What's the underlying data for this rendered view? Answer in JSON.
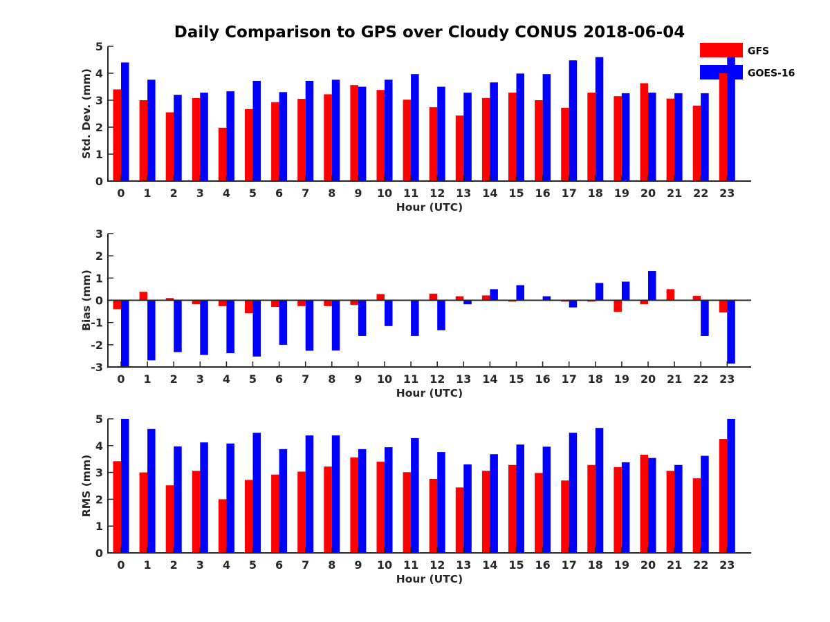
{
  "title": "Daily Comparison to GPS over Cloudy CONUS 2018-06-04",
  "legend": [
    {
      "name": "GFS",
      "color": "#ff0000"
    },
    {
      "name": "GOES-16",
      "color": "#0000ff"
    }
  ],
  "legend_position": "top-right",
  "colors": {
    "GFS": "#ff0000",
    "GOES-16": "#0000ff",
    "axis": "#262626"
  },
  "chart_data": [
    {
      "type": "bar",
      "title": "Daily Comparison to GPS over Cloudy CONUS 2018-06-04",
      "xlabel": "Hour (UTC)",
      "ylabel": "Std. Dev. (mm)",
      "ylim": [
        0,
        5
      ],
      "yticks": [
        0,
        1,
        2,
        3,
        4,
        5
      ],
      "grid": false,
      "categories": [
        "0",
        "1",
        "2",
        "3",
        "4",
        "5",
        "6",
        "7",
        "8",
        "9",
        "10",
        "11",
        "12",
        "13",
        "14",
        "15",
        "16",
        "17",
        "18",
        "19",
        "20",
        "21",
        "22",
        "23"
      ],
      "series": [
        {
          "name": "GFS",
          "values": [
            3.4,
            3.0,
            2.55,
            3.08,
            1.98,
            2.67,
            2.92,
            3.05,
            3.22,
            3.56,
            3.38,
            3.02,
            2.74,
            2.43,
            3.08,
            3.28,
            3.0,
            2.72,
            3.28,
            3.15,
            3.63,
            3.06,
            2.8,
            4.0
          ]
        },
        {
          "name": "GOES-16",
          "values": [
            4.4,
            3.76,
            3.2,
            3.28,
            3.33,
            3.72,
            3.3,
            3.72,
            3.76,
            3.5,
            3.76,
            3.97,
            3.5,
            3.28,
            3.66,
            3.99,
            3.97,
            4.48,
            4.6,
            3.26,
            3.28,
            3.26,
            3.26,
            4.6
          ]
        }
      ]
    },
    {
      "type": "bar",
      "xlabel": "Hour (UTC)",
      "ylabel": "Bias (mm)",
      "ylim": [
        -3,
        3
      ],
      "yticks": [
        -3,
        -2,
        -1,
        0,
        1,
        2,
        3
      ],
      "grid": false,
      "zero_line": true,
      "categories": [
        "0",
        "1",
        "2",
        "3",
        "4",
        "5",
        "6",
        "7",
        "8",
        "9",
        "10",
        "11",
        "12",
        "13",
        "14",
        "15",
        "16",
        "17",
        "18",
        "19",
        "20",
        "21",
        "22",
        "23"
      ],
      "series": [
        {
          "name": "GFS",
          "values": [
            -0.4,
            0.38,
            0.1,
            -0.18,
            -0.26,
            -0.58,
            -0.3,
            -0.26,
            -0.26,
            -0.2,
            0.28,
            0.0,
            0.3,
            0.18,
            0.22,
            -0.06,
            0.0,
            -0.06,
            -0.06,
            -0.52,
            -0.18,
            0.5,
            0.2,
            -0.55
          ]
        },
        {
          "name": "GOES-16",
          "values": [
            -3.0,
            -2.7,
            -2.33,
            -2.46,
            -2.38,
            -2.53,
            -2.0,
            -2.27,
            -2.26,
            -1.6,
            -1.16,
            -1.6,
            -1.35,
            -0.18,
            0.5,
            0.68,
            0.18,
            -0.32,
            0.78,
            0.84,
            1.32,
            0.0,
            -1.6,
            -2.85
          ]
        }
      ]
    },
    {
      "type": "bar",
      "xlabel": "Hour (UTC)",
      "ylabel": "RMS (mm)",
      "ylim": [
        0,
        5
      ],
      "yticks": [
        0,
        1,
        2,
        3,
        4,
        5
      ],
      "grid": false,
      "categories": [
        "0",
        "1",
        "2",
        "3",
        "4",
        "5",
        "6",
        "7",
        "8",
        "9",
        "10",
        "11",
        "12",
        "13",
        "14",
        "15",
        "16",
        "17",
        "18",
        "19",
        "20",
        "21",
        "22",
        "23"
      ],
      "series": [
        {
          "name": "GFS",
          "values": [
            3.42,
            3.0,
            2.52,
            3.06,
            2.0,
            2.72,
            2.92,
            3.03,
            3.22,
            3.56,
            3.4,
            3.01,
            2.76,
            2.44,
            3.06,
            3.28,
            2.98,
            2.7,
            3.28,
            3.2,
            3.66,
            3.06,
            2.78,
            4.25
          ]
        },
        {
          "name": "GOES-16",
          "values": [
            5.0,
            4.62,
            3.97,
            4.12,
            4.08,
            4.48,
            3.87,
            4.38,
            4.38,
            3.87,
            3.94,
            4.28,
            3.76,
            3.3,
            3.68,
            4.04,
            3.96,
            4.48,
            4.66,
            3.38,
            3.54,
            3.28,
            3.62,
            5.0
          ]
        }
      ]
    }
  ]
}
